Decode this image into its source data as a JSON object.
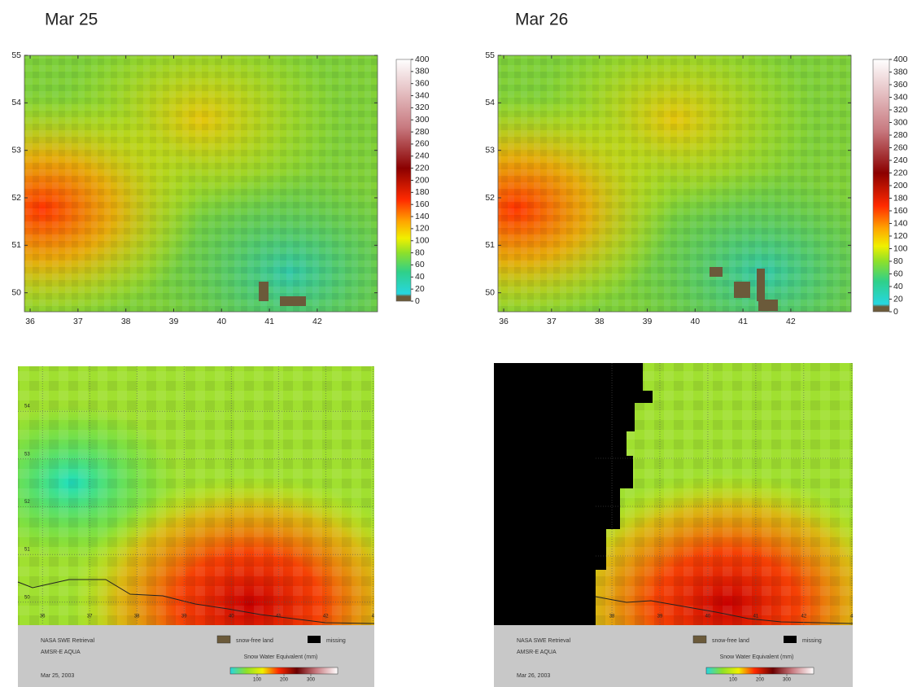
{
  "panels": [
    {
      "title": "Mar 25",
      "xlim": [
        35.88,
        43.26
      ],
      "ylim": [
        49.6,
        55
      ],
      "xticks": [
        36,
        37,
        38,
        39,
        40,
        41,
        42
      ],
      "yticks": [
        50,
        51,
        52,
        53,
        54,
        55
      ],
      "colorbar": {
        "lim": [
          0,
          400
        ],
        "ticks": [
          0,
          20,
          40,
          60,
          80,
          100,
          120,
          140,
          160,
          180,
          200,
          220,
          240,
          260,
          280,
          300,
          320,
          340,
          360,
          380,
          400
        ]
      }
    },
    {
      "title": "Mar 26",
      "xlim": [
        35.88,
        43.26
      ],
      "ylim": [
        49.6,
        55
      ],
      "xticks": [
        36,
        37,
        38,
        39,
        40,
        41,
        42
      ],
      "yticks": [
        50,
        51,
        52,
        53,
        54,
        55
      ],
      "colorbar": {
        "lim": [
          0,
          400
        ],
        "ticks": [
          0,
          20,
          40,
          60,
          80,
          100,
          120,
          140,
          160,
          180,
          200,
          220,
          240,
          260,
          280,
          300,
          320,
          340,
          360,
          380,
          400
        ]
      }
    }
  ],
  "maps": [
    {
      "xlim": [
        35.48,
        43.03
      ],
      "ylim": [
        49.52,
        54.94
      ],
      "xticks": [
        36,
        37,
        38,
        39,
        40,
        41,
        42,
        {
          "value": 43,
          "label": "4"
        }
      ],
      "yticks": [
        50,
        51,
        52,
        53,
        54
      ],
      "footer": {
        "product": "NASA SWE Retrieval",
        "sensor": "AMSR-E AQUA",
        "date": "Mar 25, 2003",
        "legend": [
          "snow-free land",
          "missing"
        ],
        "scale_title": "Snow Water Equivalent (mm)",
        "scale_lim": [
          0,
          400
        ],
        "scale_ticks": [
          100,
          200,
          300
        ]
      }
    },
    {
      "xlim": [
        35.54,
        43.02
      ],
      "ylim": [
        49.52,
        54.94
      ],
      "xticks": [
        38,
        39,
        40,
        41,
        42,
        {
          "value": 43,
          "label": "4"
        }
      ],
      "yticks": [],
      "footer": {
        "product": "NASA SWE Retrieval",
        "sensor": "AMSR-E AQUA",
        "date": "Mar 26, 2003",
        "legend": [
          "snow-free land",
          "missing"
        ],
        "scale_title": "Snow Water Equivalent (mm)",
        "scale_lim": [
          0,
          400
        ],
        "scale_ticks": [
          100,
          200,
          300
        ]
      }
    }
  ]
}
